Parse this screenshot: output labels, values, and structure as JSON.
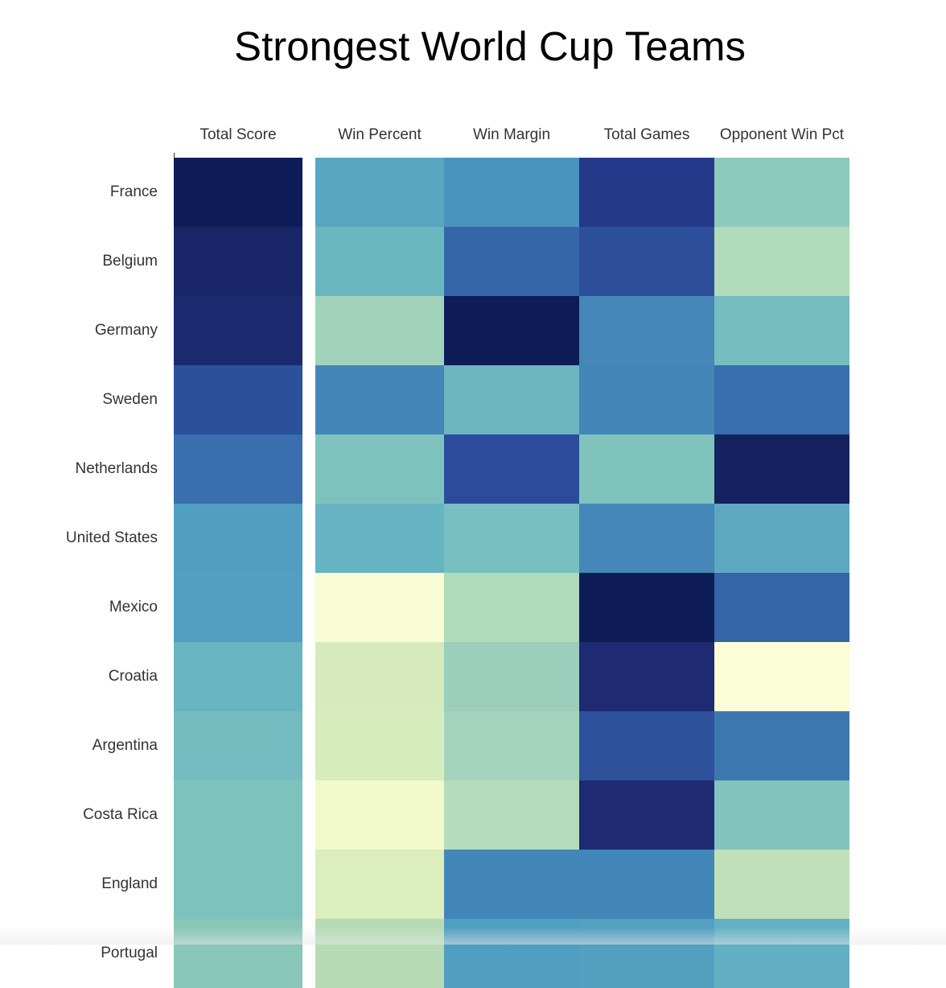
{
  "title": "Strongest World Cup Teams",
  "chart_data": {
    "type": "heatmap",
    "title": "Strongest World Cup Teams",
    "columns": [
      "Total Score",
      "Win Percent",
      "Win Margin",
      "Total Games",
      "Opponent Win Pct"
    ],
    "rows": [
      "France",
      "Belgium",
      "Germany",
      "Sweden",
      "Netherlands",
      "United States",
      "Mexico",
      "Croatia",
      "Argentina",
      "Costa Rica",
      "England",
      "Portugal"
    ],
    "colorscale": "YlGnBu (light = low, dark = high)",
    "colors": [
      [
        "#0e1d57",
        "#58a6c0",
        "#4994bd",
        "#25398b",
        "#8ccabd"
      ],
      [
        "#192768",
        "#6bb7c0",
        "#3566a9",
        "#2d4f9c",
        "#b1dbb9"
      ],
      [
        "#1b2a6e",
        "#a1d3ba",
        "#0e1d57",
        "#4487b8",
        "#76bdbf"
      ],
      [
        "#2c509c",
        "#4386b8",
        "#6db6bf",
        "#4386b8",
        "#3a6dae"
      ],
      [
        "#3a6eaf",
        "#7fc2bd",
        "#2c4b9a",
        "#80c3bc",
        "#15225f"
      ],
      [
        "#519fc0",
        "#66b3c1",
        "#79bfc2",
        "#4487b8",
        "#5ea9c1"
      ],
      [
        "#529fc1",
        "#f8fcd7",
        "#b2dbbb",
        "#0e1d57",
        "#3465a9"
      ],
      [
        "#69b4c1",
        "#d6eabd",
        "#9ccfbb",
        "#1e2a72",
        "#fbfdd9"
      ],
      [
        "#74bcbf",
        "#d7ecbc",
        "#a4d4bd",
        "#2e519c",
        "#3c77b0"
      ],
      [
        "#7ec2bd",
        "#f1f8c9",
        "#b5dcbb",
        "#1e2a72",
        "#82c4bd"
      ],
      [
        "#7ec2bd",
        "#dcedbe",
        "#4387b8",
        "#4387b8",
        "#c0e0ba"
      ],
      [
        "#88c6b7",
        "#b6dbb5",
        "#519fc0",
        "#53a0c1",
        "#63b0c4"
      ]
    ]
  }
}
